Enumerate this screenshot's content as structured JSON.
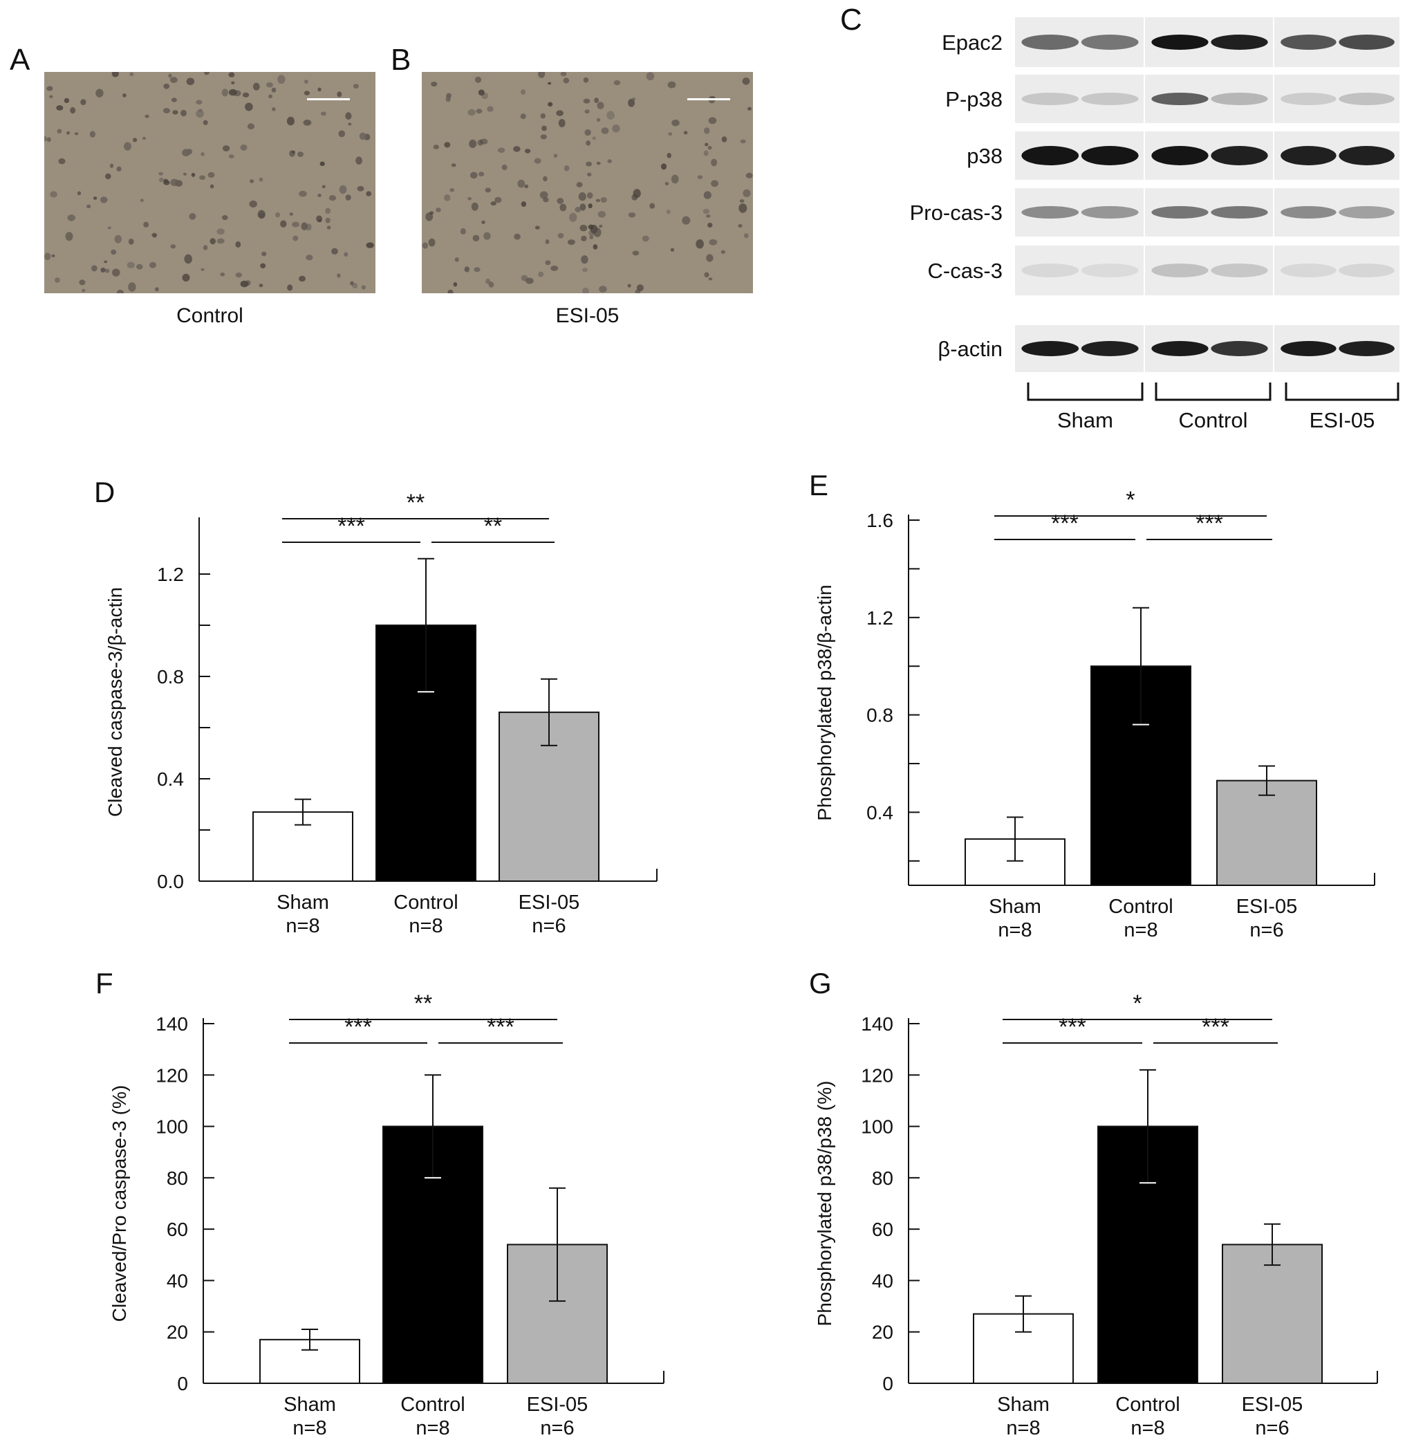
{
  "panels": {
    "A": {
      "letter": "A",
      "caption": "Control"
    },
    "B": {
      "letter": "B",
      "caption": "ESI-05"
    },
    "C": {
      "letter": "C"
    }
  },
  "blot": {
    "rows": [
      "Epac2",
      "P-p38",
      "p38",
      "Pro-cas-3",
      "C-cas-3",
      "β-actin"
    ],
    "groups": [
      "Sham",
      "Control",
      "ESI-05"
    ]
  },
  "chart_data": [
    {
      "panel": "D",
      "type": "bar",
      "categories": [
        "Sham",
        "Control",
        "ESI-05"
      ],
      "sample_sizes": [
        "n=8",
        "n=8",
        "n=6"
      ],
      "values": [
        0.27,
        1.0,
        0.66
      ],
      "errors": [
        0.05,
        0.26,
        0.13
      ],
      "colors": [
        "#ffffff",
        "#000000",
        "#b3b3b3"
      ],
      "ylabel": "Cleaved caspase-3/β-actin",
      "ylim": [
        0,
        1.4
      ],
      "yticks": [
        "0.0",
        "0.4",
        "0.8",
        "1.2"
      ],
      "ytick_values": [
        0,
        0.4,
        0.8,
        1.2
      ],
      "minor_ticks": [
        0.2,
        0.6,
        1.0
      ],
      "annotations": [
        {
          "from": 0,
          "to": 2,
          "label": "**",
          "level": 2
        },
        {
          "from": 0,
          "to": 1,
          "label": "***",
          "level": 1
        },
        {
          "from": 1,
          "to": 2,
          "label": "**",
          "level": 1
        }
      ]
    },
    {
      "panel": "E",
      "type": "bar",
      "categories": [
        "Sham",
        "Control",
        "ESI-05"
      ],
      "sample_sizes": [
        "n=8",
        "n=8",
        "n=6"
      ],
      "values": [
        0.29,
        1.0,
        0.53
      ],
      "errors": [
        0.09,
        0.24,
        0.06
      ],
      "colors": [
        "#ffffff",
        "#000000",
        "#b3b3b3"
      ],
      "ylabel": "Phosphorylated p38/β-actin",
      "ylim": [
        0.1,
        1.6
      ],
      "yticks": [
        "0.4",
        "0.8",
        "1.2",
        "1.6"
      ],
      "ytick_values": [
        0.4,
        0.8,
        1.2,
        1.6
      ],
      "minor_ticks": [
        0.2,
        0.6,
        1.0,
        1.4
      ],
      "annotations": [
        {
          "from": 0,
          "to": 2,
          "label": "*",
          "level": 2
        },
        {
          "from": 0,
          "to": 1,
          "label": "***",
          "level": 1
        },
        {
          "from": 1,
          "to": 2,
          "label": "***",
          "level": 1
        }
      ]
    },
    {
      "panel": "F",
      "type": "bar",
      "categories": [
        "Sham",
        "Control",
        "ESI-05"
      ],
      "sample_sizes": [
        "n=8",
        "n=8",
        "n=6"
      ],
      "values": [
        17,
        100,
        54
      ],
      "errors": [
        4,
        20,
        22
      ],
      "colors": [
        "#ffffff",
        "#000000",
        "#b3b3b3"
      ],
      "ylabel": "Cleaved/Pro caspase-3 (%)",
      "ylim": [
        0,
        140
      ],
      "yticks": [
        "0",
        "20",
        "40",
        "60",
        "80",
        "100",
        "120",
        "140"
      ],
      "ytick_values": [
        0,
        20,
        40,
        60,
        80,
        100,
        120,
        140
      ],
      "minor_ticks": [],
      "annotations": [
        {
          "from": 0,
          "to": 2,
          "label": "**",
          "level": 2
        },
        {
          "from": 0,
          "to": 1,
          "label": "***",
          "level": 1
        },
        {
          "from": 1,
          "to": 2,
          "label": "***",
          "level": 1
        }
      ]
    },
    {
      "panel": "G",
      "type": "bar",
      "categories": [
        "Sham",
        "Control",
        "ESI-05"
      ],
      "sample_sizes": [
        "n=8",
        "n=8",
        "n=6"
      ],
      "values": [
        27,
        100,
        54
      ],
      "errors": [
        7,
        22,
        8
      ],
      "colors": [
        "#ffffff",
        "#000000",
        "#b3b3b3"
      ],
      "ylabel": "Phosphorylated p38/p38 (%)",
      "ylim": [
        0,
        140
      ],
      "yticks": [
        "0",
        "20",
        "40",
        "60",
        "80",
        "100",
        "120",
        "140"
      ],
      "ytick_values": [
        0,
        20,
        40,
        60,
        80,
        100,
        120,
        140
      ],
      "minor_ticks": [],
      "annotations": [
        {
          "from": 0,
          "to": 2,
          "label": "*",
          "level": 2
        },
        {
          "from": 0,
          "to": 1,
          "label": "***",
          "level": 1
        },
        {
          "from": 1,
          "to": 2,
          "label": "***",
          "level": 1
        }
      ]
    }
  ]
}
